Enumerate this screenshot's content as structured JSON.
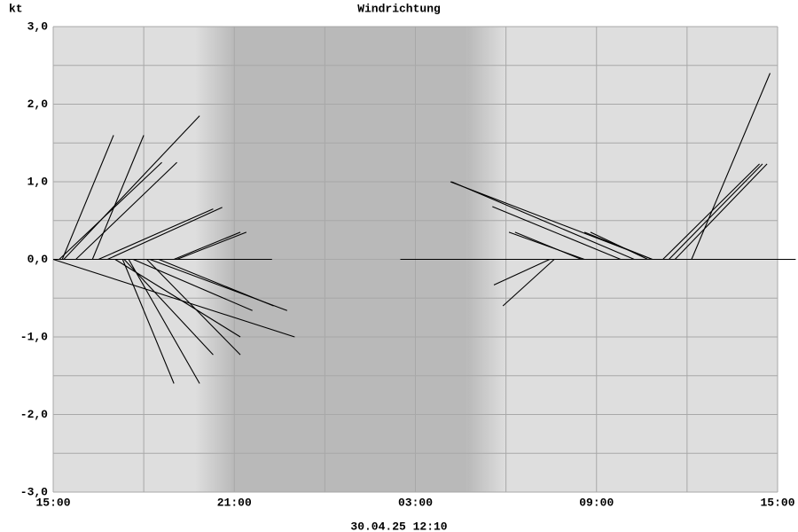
{
  "chart_data": {
    "type": "stick",
    "title": "Windrichtung",
    "y_unit": "kt",
    "footer": "30.04.25 12:10",
    "xlim": [
      0,
      24
    ],
    "ylim": [
      -3,
      3
    ],
    "xticks": [
      {
        "value": 0,
        "label": "15:00"
      },
      {
        "value": 6,
        "label": "21:00"
      },
      {
        "value": 12,
        "label": "03:00"
      },
      {
        "value": 18,
        "label": "09:00"
      },
      {
        "value": 24,
        "label": "15:00"
      }
    ],
    "xgrid": [
      0,
      3,
      6,
      9,
      12,
      15,
      18,
      21,
      24
    ],
    "yticks": [
      {
        "value": 3,
        "label": "3,0"
      },
      {
        "value": 2,
        "label": "2,0"
      },
      {
        "value": 1,
        "label": "1,0"
      },
      {
        "value": 0,
        "label": "0,0"
      },
      {
        "value": -1,
        "label": "-1,0"
      },
      {
        "value": -2,
        "label": "-2,0"
      },
      {
        "value": -3,
        "label": "-3,0"
      }
    ],
    "ygrid": [
      3,
      2.5,
      2,
      1.5,
      1,
      0.5,
      0,
      -0.5,
      -1,
      -1.5,
      -2,
      -2.5,
      -3
    ],
    "grid": true,
    "background": "#dedede",
    "night_color": "#b9b9b9",
    "color": "#000000",
    "night": {
      "start": 4.7,
      "end": 15
    },
    "baseline": [
      [
        0,
        7.25
      ],
      [
        11.5,
        24.6
      ]
    ],
    "sticks": [
      {
        "x": 0.3,
        "end_x": 2.0,
        "end_y": 1.6
      },
      {
        "x": 1.3,
        "end_x": 3.0,
        "end_y": 1.6
      },
      {
        "x": 0.35,
        "end_x": 4.85,
        "end_y": 1.85
      },
      {
        "x": 0.2,
        "end_x": 3.6,
        "end_y": 1.25
      },
      {
        "x": 0.75,
        "end_x": 4.1,
        "end_y": 1.25
      },
      {
        "x": 0.0,
        "end_x": 8.0,
        "end_y": -1.0
      },
      {
        "x": 1.5,
        "end_x": 5.3,
        "end_y": 0.65
      },
      {
        "x": 1.8,
        "end_x": 5.6,
        "end_y": 0.67
      },
      {
        "x": 4.0,
        "end_x": 6.2,
        "end_y": 0.35
      },
      {
        "x": 4.1,
        "end_x": 6.4,
        "end_y": 0.35
      },
      {
        "x": 2.3,
        "end_x": 4.0,
        "end_y": -1.6
      },
      {
        "x": 2.5,
        "end_x": 4.85,
        "end_y": -1.6
      },
      {
        "x": 2.35,
        "end_x": 5.3,
        "end_y": -1.23
      },
      {
        "x": 3.1,
        "end_x": 6.2,
        "end_y": -1.23
      },
      {
        "x": 2.05,
        "end_x": 6.2,
        "end_y": -1.0
      },
      {
        "x": 2.65,
        "end_x": 6.6,
        "end_y": -0.66
      },
      {
        "x": 3.2,
        "end_x": 7.75,
        "end_y": -0.66
      },
      {
        "x": 3.5,
        "end_x": 7.3,
        "end_y": -0.6
      },
      {
        "x": 19.25,
        "end_x": 13.2,
        "end_y": 1.0
      },
      {
        "x": 19.85,
        "end_x": 13.16,
        "end_y": 1.0
      },
      {
        "x": 18.8,
        "end_x": 14.55,
        "end_y": 0.68
      },
      {
        "x": 17.6,
        "end_x": 15.1,
        "end_y": 0.35
      },
      {
        "x": 17.5,
        "end_x": 15.3,
        "end_y": 0.35
      },
      {
        "x": 19.85,
        "end_x": 17.6,
        "end_y": 0.35
      },
      {
        "x": 19.7,
        "end_x": 17.8,
        "end_y": 0.35
      },
      {
        "x": 16.6,
        "end_x": 14.9,
        "end_y": -0.6
      },
      {
        "x": 16.45,
        "end_x": 14.6,
        "end_y": -0.33
      },
      {
        "x": 20.2,
        "end_x": 23.4,
        "end_y": 1.23
      },
      {
        "x": 20.4,
        "end_x": 23.5,
        "end_y": 1.23
      },
      {
        "x": 20.6,
        "end_x": 23.65,
        "end_y": 1.23
      },
      {
        "x": 21.15,
        "end_x": 23.75,
        "end_y": 2.4
      }
    ]
  }
}
